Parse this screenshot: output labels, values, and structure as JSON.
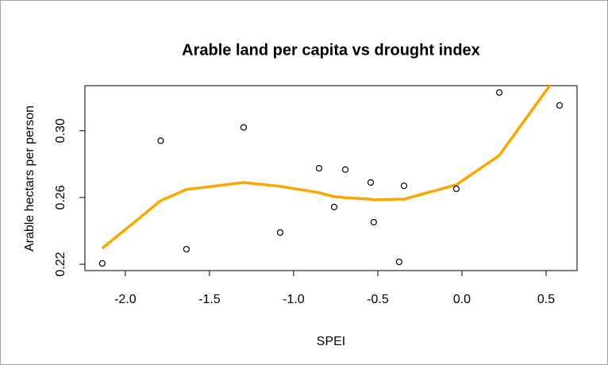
{
  "chart_data": {
    "type": "scatter",
    "title": "Arable land per capita vs drought index",
    "x_label": "SPEI",
    "y_label": "Arable hectars per person",
    "x": [
      -2.137,
      -1.79,
      -1.637,
      -1.297,
      -1.08,
      -0.849,
      -0.759,
      -0.693,
      -0.542,
      -0.524,
      -0.373,
      -0.344,
      -0.033,
      0.222,
      0.58
    ],
    "values": [
      0.2205,
      0.294,
      0.229,
      0.302,
      0.239,
      0.2775,
      0.2543,
      0.2767,
      0.269,
      0.2452,
      0.2214,
      0.267,
      0.2652,
      0.3229,
      0.3152
    ],
    "color": "#000000",
    "trend": {
      "color": "#ffa500",
      "values": [
        0.2295,
        0.2581,
        0.2648,
        0.269,
        0.2667,
        0.2629,
        0.2605,
        0.2599,
        0.259,
        0.2586,
        0.259,
        0.259,
        0.2676,
        0.2852,
        0.3352
      ]
    },
    "xlim": [
      -2.24,
      0.684
    ],
    "ylim": [
      0.2162,
      0.327
    ],
    "xticks": [
      {
        "value": -2,
        "label": "-2.0"
      },
      -1.5,
      {
        "value": -1,
        "label": "-1.0"
      },
      -0.5,
      {
        "value": 0,
        "label": "0.0"
      },
      0.5
    ],
    "yticks": [
      0.22,
      0.26,
      {
        "value": 0.3,
        "label": "0.30"
      }
    ]
  }
}
